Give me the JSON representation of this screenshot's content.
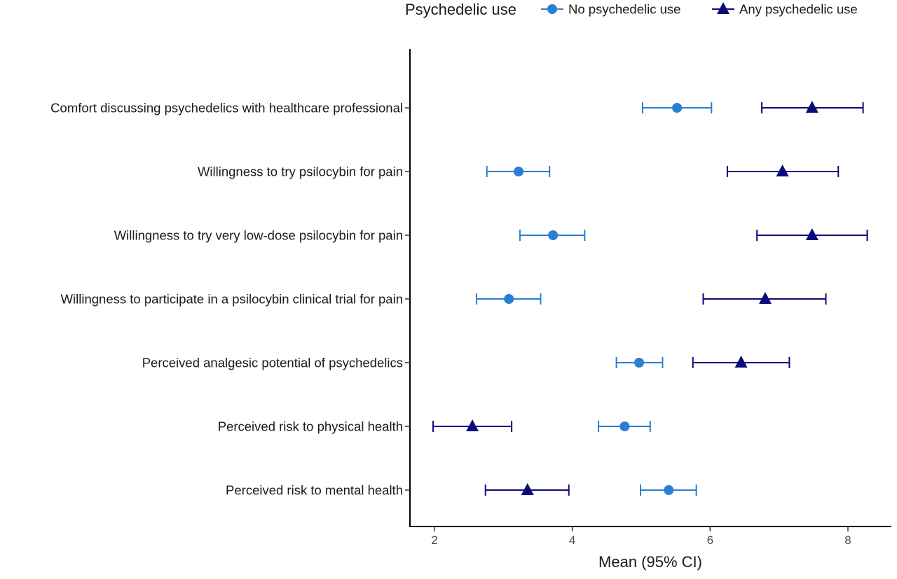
{
  "chart_data": {
    "type": "scatter",
    "xlabel": "Mean (95% CI)",
    "xlim": [
      1.66,
      8.6
    ],
    "xticks": [
      2,
      4,
      6,
      8
    ],
    "xtick_labels": [
      "2",
      "4",
      "6",
      "8"
    ],
    "categories": [
      "Comfort discussing psychedelics with healthcare professional",
      "Willingness to try psilocybin for pain",
      "Willingness to try very low-dose psilocybin for pain",
      "Willingness to participate in a psilocybin clinical trial for pain",
      "Perceived analgesic potential of psychedelics",
      "Perceived risk to physical health",
      "Perceived risk to mental health"
    ],
    "legend": {
      "title": "Psychedelic use",
      "position": "top"
    },
    "series": [
      {
        "name": "No psychedelic use",
        "marker": "circle",
        "color": "#2a7fd0",
        "mean": [
          5.52,
          3.22,
          3.72,
          3.08,
          4.97,
          4.76,
          5.4
        ],
        "lower": [
          5.02,
          2.76,
          3.24,
          2.61,
          4.64,
          4.38,
          4.99
        ],
        "upper": [
          6.02,
          3.67,
          4.18,
          3.54,
          5.31,
          5.13,
          5.8
        ]
      },
      {
        "name": "Any psychedelic use",
        "marker": "triangle",
        "color": "#0b0b7a",
        "mean": [
          7.48,
          7.05,
          7.48,
          6.8,
          6.45,
          2.55,
          3.35
        ],
        "lower": [
          6.75,
          6.25,
          6.68,
          5.9,
          5.75,
          1.98,
          2.74
        ],
        "upper": [
          8.22,
          7.86,
          8.28,
          7.68,
          7.15,
          3.12,
          3.95
        ]
      }
    ]
  }
}
